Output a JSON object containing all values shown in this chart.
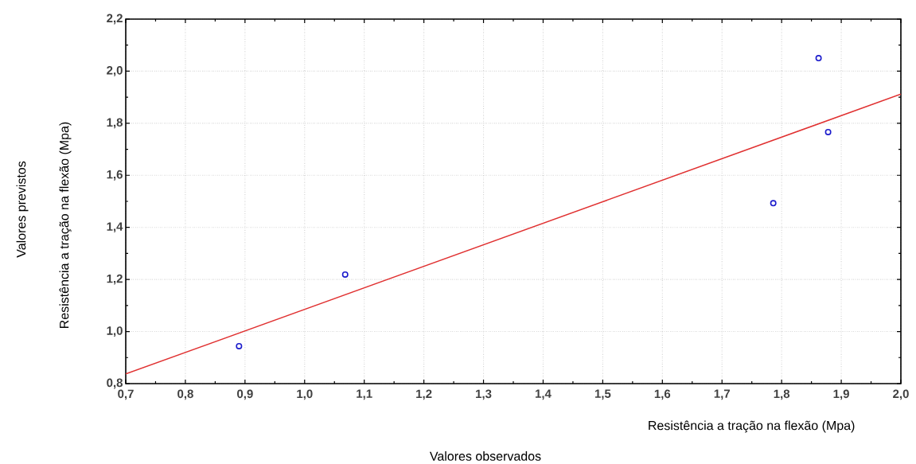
{
  "chart_data": {
    "type": "scatter",
    "xlabel": "Resistência a tração na flexão (Mpa)",
    "ylabel": "Resistência a tração na flexão (Mpa)",
    "annotations": [
      "Valores observados",
      "Valores previstos"
    ],
    "series": [
      {
        "color": "#1c1ccc",
        "marker": "circle",
        "x": [
          0.89,
          1.068,
          1.786,
          1.862,
          1.878
        ],
        "values": [
          0.944,
          1.219,
          1.493,
          2.05,
          1.766
        ]
      },
      {
        "type": "line",
        "color": "#e03030",
        "marker": "none",
        "x": [
          0.7,
          2.0
        ],
        "values": [
          0.837,
          1.912
        ]
      }
    ],
    "xlim": [
      0.7,
      2.0
    ],
    "ylim": [
      0.8,
      2.2
    ],
    "xticks": [
      {
        "value": 0.7,
        "label": "0,7"
      },
      {
        "value": 0.8,
        "label": "0,8"
      },
      {
        "value": 0.9,
        "label": "0,9"
      },
      {
        "value": 1.0,
        "label": "1,0"
      },
      {
        "value": 1.1,
        "label": "1,1"
      },
      {
        "value": 1.2,
        "label": "1,2"
      },
      {
        "value": 1.3,
        "label": "1,3"
      },
      {
        "value": 1.4,
        "label": "1,4"
      },
      {
        "value": 1.5,
        "label": "1,5"
      },
      {
        "value": 1.6,
        "label": "1,6"
      },
      {
        "value": 1.7,
        "label": "1,7"
      },
      {
        "value": 1.8,
        "label": "1,8"
      },
      {
        "value": 1.9,
        "label": "1,9"
      },
      {
        "value": 2.0,
        "label": "2,0"
      }
    ],
    "yticks": [
      {
        "value": 0.8,
        "label": "0,8"
      },
      {
        "value": 1.0,
        "label": "1,0"
      },
      {
        "value": 1.2,
        "label": "1,2"
      },
      {
        "value": 1.4,
        "label": "1,4"
      },
      {
        "value": 1.6,
        "label": "1,6"
      },
      {
        "value": 1.8,
        "label": "1,8"
      },
      {
        "value": 2.0,
        "label": "2,0"
      },
      {
        "value": 2.2,
        "label": "2,2"
      }
    ],
    "grid": true
  }
}
